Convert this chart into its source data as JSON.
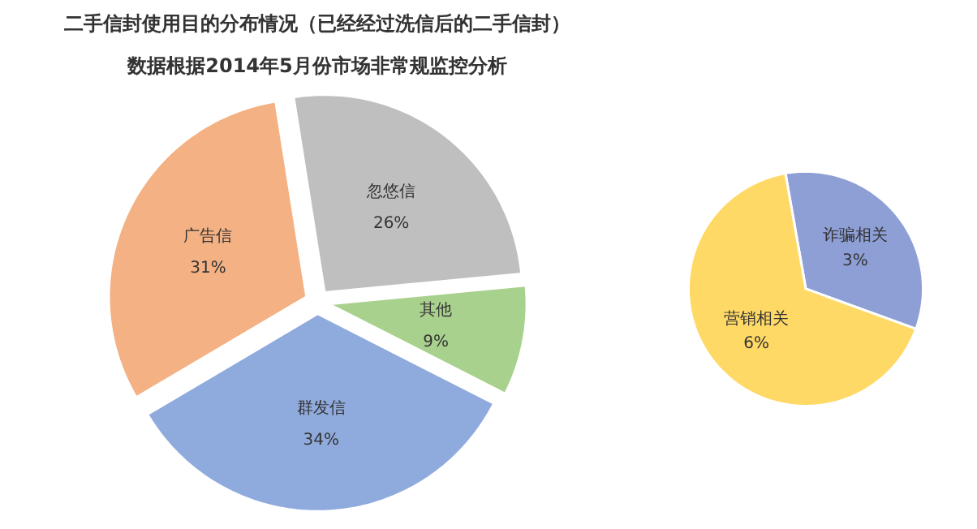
{
  "chart_data": [
    {
      "type": "pie",
      "title": "二手信封使用目的分布情况（已经经过洗信后的二手信封）",
      "subtitle": "数据根据2014年5月份市场非常规监控分析",
      "categories": [
        "忽悠信",
        "其他",
        "群发信",
        "广告信"
      ],
      "values": [
        26,
        9,
        34,
        31
      ],
      "value_labels": [
        "26%",
        "9%",
        "34%",
        "31%"
      ],
      "colors": [
        "#bfbfbf",
        "#a9d18e",
        "#8faadc",
        "#f4b183"
      ]
    },
    {
      "type": "pie",
      "categories": [
        "诈骗相关",
        "营销相关"
      ],
      "values": [
        3,
        6
      ],
      "value_labels": [
        "3%",
        "6%"
      ],
      "colors": [
        "#8e9fd6",
        "#ffd966"
      ]
    }
  ]
}
